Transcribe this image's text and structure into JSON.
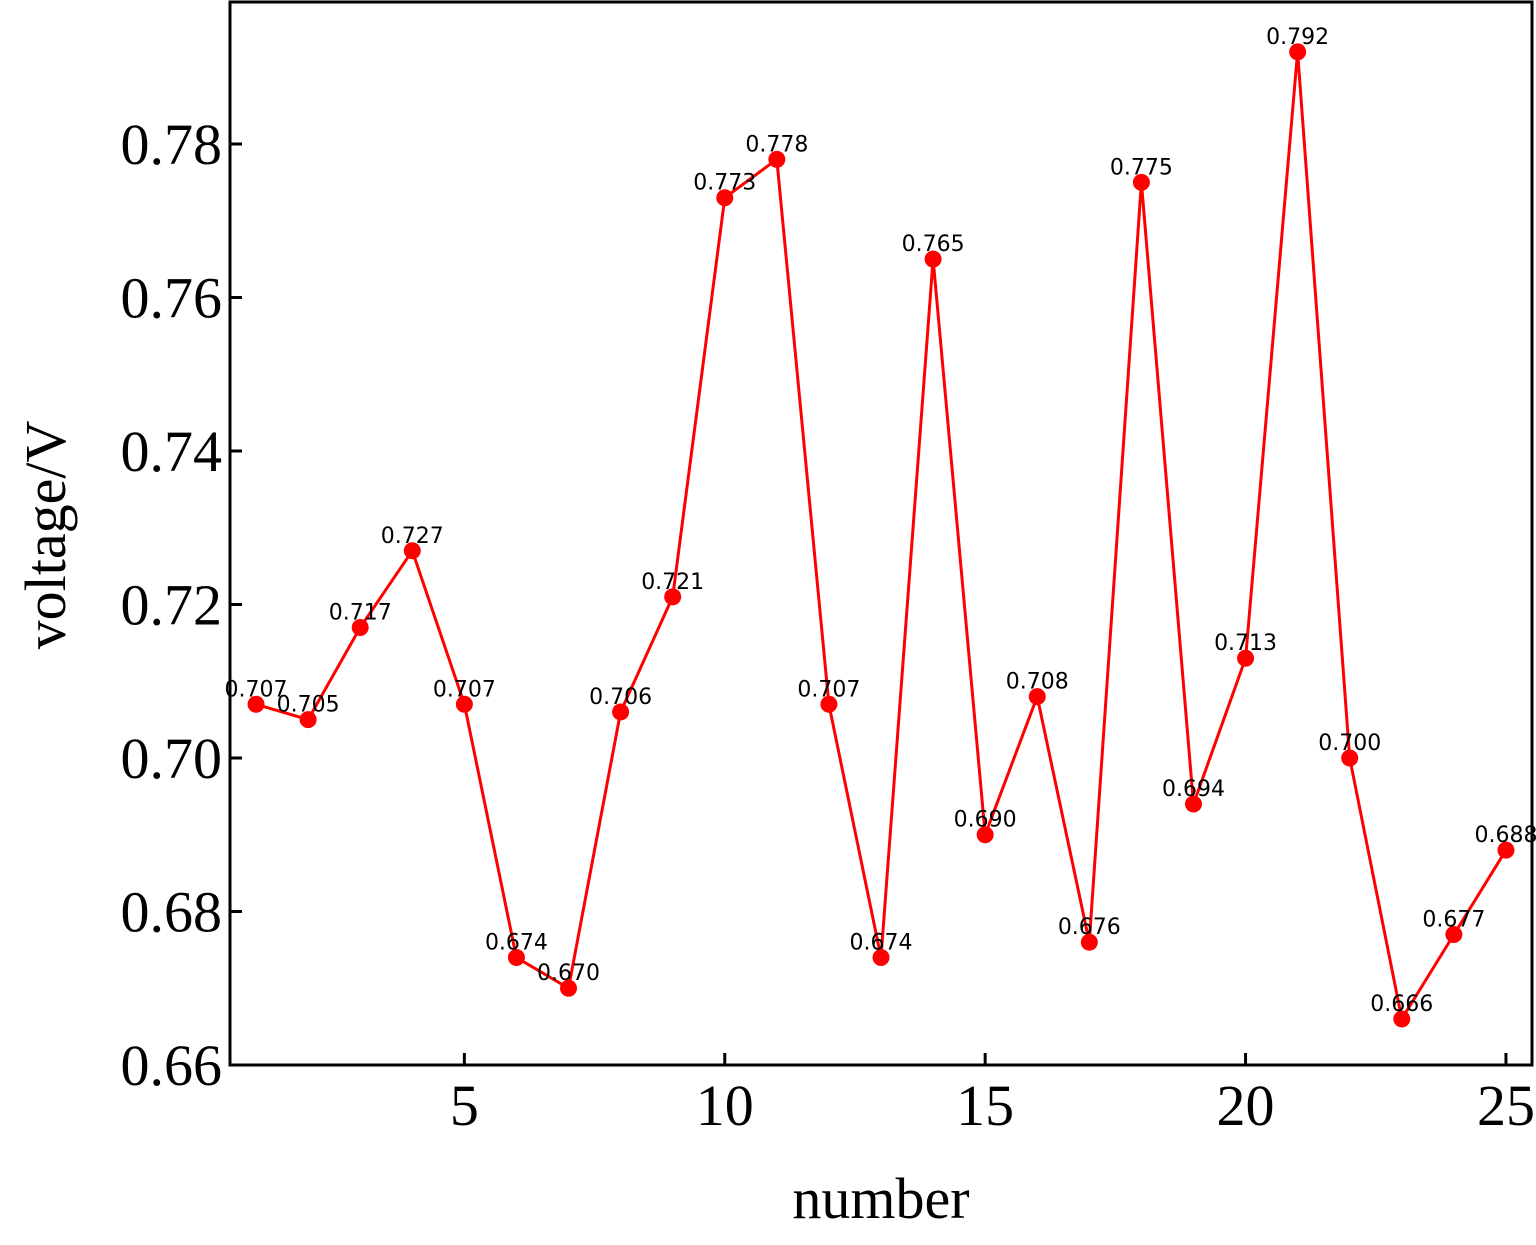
{
  "chart_data": {
    "type": "line",
    "xlabel": "number",
    "ylabel": "voltage/V",
    "xlim": [
      0.5,
      25.5
    ],
    "ylim": [
      0.66,
      0.7985
    ],
    "xticks": [
      5,
      10,
      15,
      20,
      25
    ],
    "yticks": [
      0.66,
      0.68,
      0.7,
      0.72,
      0.74,
      0.76,
      0.78
    ],
    "ytick_labels": [
      "0.66",
      "0.68",
      "0.70",
      "0.72",
      "0.74",
      "0.76",
      "0.78"
    ],
    "grid": false,
    "color": "#ff0000",
    "series": [
      {
        "x": [
          1,
          2,
          3,
          4,
          5,
          6,
          7,
          8,
          9,
          10,
          11,
          12,
          13,
          14,
          15,
          16,
          17,
          18,
          19,
          20,
          21,
          22,
          23,
          24,
          25
        ],
        "values": [
          0.707,
          0.705,
          0.717,
          0.727,
          0.707,
          0.674,
          0.67,
          0.706,
          0.721,
          0.773,
          0.778,
          0.707,
          0.674,
          0.765,
          0.69,
          0.708,
          0.676,
          0.775,
          0.694,
          0.713,
          0.792,
          0.7,
          0.666,
          0.677,
          0.688
        ],
        "labels": [
          "0.707",
          "0.705",
          "0.717",
          "0.727",
          "0.707",
          "0.674",
          "0.670",
          "0.706",
          "0.721",
          "0.773",
          "0.778",
          "0.707",
          "0.674",
          "0.765",
          "0.690",
          "0.708",
          "0.676",
          "0.775",
          "0.694",
          "0.713",
          "0.792",
          "0.700",
          "0.666",
          "0.677",
          "0.688"
        ]
      }
    ]
  }
}
